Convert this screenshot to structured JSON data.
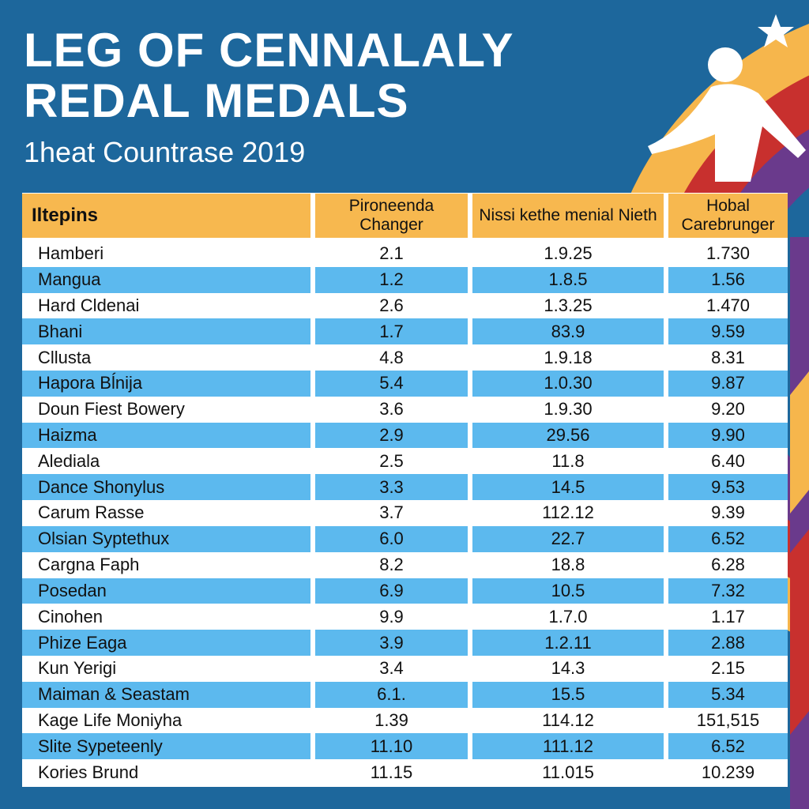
{
  "header": {
    "title_lines": [
      "LEG OF CENNALALY",
      "REDAL MEDALS"
    ],
    "subtitle": "1heat Countrase 2019"
  },
  "table": {
    "columns": [
      "Iltepins",
      "Pironeenda Changer",
      "Nissi kethe menial Nieth",
      "Hobal Carebrunger"
    ],
    "rows": [
      [
        "Hamberi",
        "2.1",
        "1.9.25",
        "1.730"
      ],
      [
        "Mangua",
        "1.2",
        "1.8.5",
        "1.56"
      ],
      [
        "Hard Cldenai",
        "2.6",
        "1.3.25",
        "1.470"
      ],
      [
        "Bhani",
        "1.7",
        "83.9",
        "9.59"
      ],
      [
        "Cllusta",
        "4.8",
        "1.9.18",
        "8.31"
      ],
      [
        "Hapora Bĺnija",
        "5.4",
        "1.0.30",
        "9.87"
      ],
      [
        "Doun Fiest Bowery",
        "3.6",
        "1.9.30",
        "9.20"
      ],
      [
        "Haizma",
        "2.9",
        "29.56",
        "9.90"
      ],
      [
        "Alediala",
        "2.5",
        "11.8",
        "6.40"
      ],
      [
        "Dance Shonylus",
        "3.3",
        "14.5",
        "9.53"
      ],
      [
        "Carum Rasse",
        "3.7",
        "112.12",
        "9.39"
      ],
      [
        "Olsian Syptethux",
        "6.0",
        "22.7",
        "6.52"
      ],
      [
        "Cargna Faph",
        "8.2",
        "18.8",
        "6.28"
      ],
      [
        "Posedan",
        "6.9",
        "10.5",
        "7.32"
      ],
      [
        "Cinohen",
        "9.9",
        "1.7.0",
        "1.17"
      ],
      [
        "Phize Eaga",
        "3.9",
        "1.2.11",
        "2.88"
      ],
      [
        "Kun Yerigi",
        "3.4",
        "14.3",
        "2.15"
      ],
      [
        "Maiman & Seastam",
        "6.1.",
        "15.5",
        "5.34"
      ],
      [
        "Kage Life Moniyha",
        "1.39",
        "114.12",
        "151,515"
      ],
      [
        "Slite Sypeteenly",
        "11.10",
        "111.12",
        "6.52"
      ],
      [
        "Kories Brund",
        "11.15",
        "11.015",
        "10.239"
      ]
    ]
  }
}
